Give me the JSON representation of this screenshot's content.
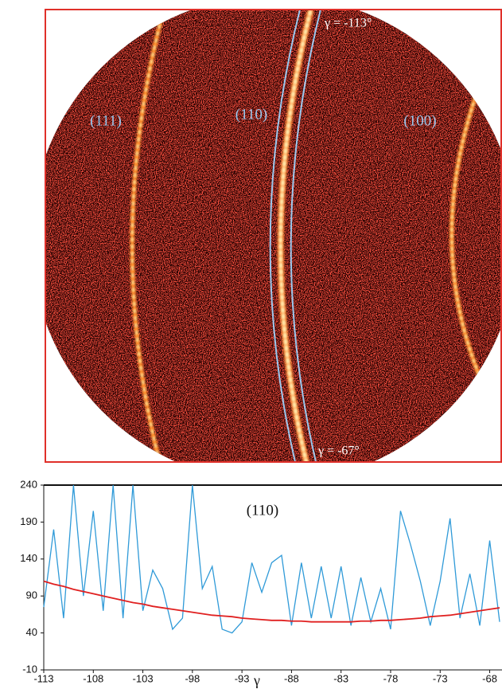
{
  "image": {
    "labels": [
      "(111)",
      "(110)",
      "(100)"
    ],
    "angles": [
      "γ = -113°",
      "γ = -67°"
    ]
  },
  "chart_data": {
    "type": "line",
    "annotation": "(110)",
    "x_label": "γ",
    "x": [
      -113,
      -112,
      -111,
      -110,
      -109,
      -108,
      -107,
      -106,
      -105,
      -104,
      -103,
      -102,
      -101,
      -100,
      -99,
      -98,
      -97,
      -96,
      -95,
      -94,
      -93,
      -92,
      -91,
      -90,
      -89,
      -88,
      -87,
      -86,
      -85,
      -84,
      -83,
      -82,
      -81,
      -80,
      -79,
      -78,
      -77,
      -76,
      -75,
      -74,
      -73,
      -72,
      -71,
      -70,
      -69,
      -68,
      -67
    ],
    "series": [
      {
        "color": "#2f9ad8",
        "values": [
          75,
          180,
          60,
          240,
          90,
          205,
          70,
          240,
          60,
          240,
          70,
          125,
          100,
          45,
          60,
          240,
          100,
          130,
          45,
          40,
          55,
          135,
          95,
          135,
          145,
          50,
          135,
          60,
          130,
          60,
          130,
          50,
          115,
          55,
          100,
          45,
          205,
          160,
          110,
          50,
          110,
          195,
          60,
          120,
          50,
          165,
          55
        ]
      },
      {
        "color": "#e02020",
        "values": [
          110,
          106,
          103,
          99,
          96,
          93,
          90,
          87,
          84,
          81,
          79,
          76,
          74,
          72,
          70,
          68,
          66,
          64,
          63,
          62,
          60,
          59,
          58,
          57,
          57,
          56,
          56,
          55,
          55,
          55,
          55,
          55,
          56,
          56,
          57,
          57,
          58,
          59,
          60,
          62,
          63,
          64,
          66,
          68,
          70,
          72,
          74
        ]
      }
    ],
    "xlim": [
      -113,
      -67
    ],
    "ylim": [
      -10,
      240
    ],
    "xticks": [
      -113,
      -108,
      -103,
      -98,
      -93,
      -88,
      -83,
      -78,
      -73,
      -68
    ],
    "yticks": [
      -10,
      40,
      90,
      140,
      190,
      240
    ]
  }
}
